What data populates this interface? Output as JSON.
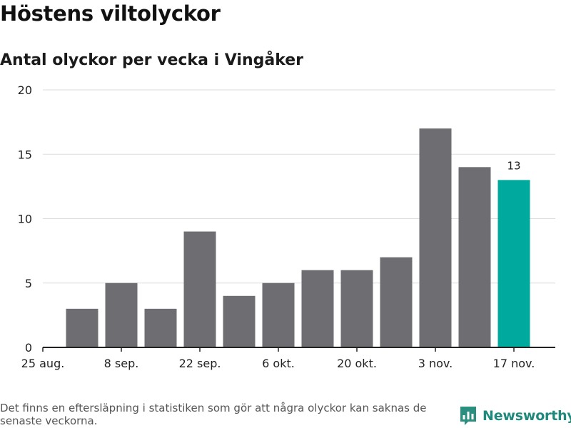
{
  "title": "Höstens viltolyckor",
  "subtitle": "Antal olyckor per vecka i Vingåker",
  "footnote": "Det finns en eftersläpning i statistiken som gör att några olyckor kan saknas de senaste veckorna.",
  "brand": "Newsworthy",
  "colors": {
    "bar": "#6e6d72",
    "highlight": "#00a99d",
    "brand": "#1f8a7c",
    "grid": "#dddddd",
    "axis": "#222222"
  },
  "chart_data": {
    "type": "bar",
    "x_tick_labels": [
      "25 aug.",
      "8 sep.",
      "22 sep.",
      "6 okt.",
      "20 okt.",
      "3 nov.",
      "17 nov."
    ],
    "weeks": [
      "1 sep.",
      "8 sep.",
      "15 sep.",
      "22 sep.",
      "29 sep.",
      "6 okt.",
      "13 okt.",
      "20 okt.",
      "27 okt.",
      "3 nov.",
      "10 nov.",
      "17 nov."
    ],
    "values": [
      3,
      5,
      3,
      9,
      4,
      5,
      6,
      6,
      7,
      17,
      14,
      13
    ],
    "highlight_index": 11,
    "data_labels": [
      {
        "index": 11,
        "text": "13"
      }
    ],
    "yticks": [
      0,
      5,
      10,
      15,
      20
    ],
    "ylim": [
      0,
      20
    ],
    "grid": true
  }
}
